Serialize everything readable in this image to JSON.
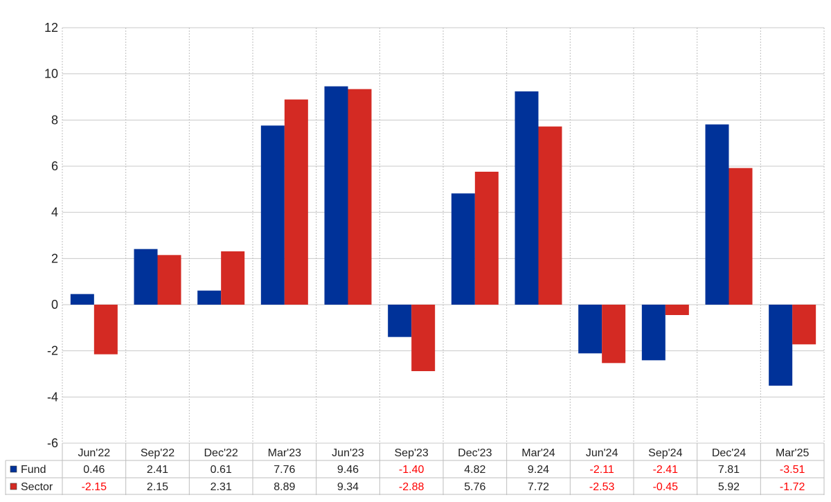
{
  "chart_data": {
    "type": "bar",
    "categories": [
      "Jun'22",
      "Sep'22",
      "Dec'22",
      "Mar'23",
      "Jun'23",
      "Sep'23",
      "Dec'23",
      "Mar'24",
      "Jun'24",
      "Sep'24",
      "Dec'24",
      "Mar'25"
    ],
    "series": [
      {
        "name": "Fund",
        "color": "#003299",
        "values": [
          0.46,
          2.41,
          0.61,
          7.76,
          9.46,
          -1.4,
          4.82,
          9.24,
          -2.11,
          -2.41,
          7.81,
          -3.51
        ],
        "labels": [
          "0.46",
          "2.41",
          "0.61",
          "7.76",
          "9.46",
          "-1.40",
          "4.82",
          "9.24",
          "-2.11",
          "-2.41",
          "7.81",
          "-3.51"
        ]
      },
      {
        "name": "Sector",
        "color": "#d42a23",
        "values": [
          -2.15,
          2.15,
          2.31,
          8.89,
          9.34,
          -2.88,
          5.76,
          7.72,
          -2.53,
          -0.45,
          5.92,
          -1.72
        ],
        "labels": [
          "-2.15",
          "2.15",
          "2.31",
          "8.89",
          "9.34",
          "-2.88",
          "5.76",
          "7.72",
          "-2.53",
          "-0.45",
          "5.92",
          "-1.72"
        ]
      }
    ],
    "y_ticks": [
      "12",
      "10",
      "8",
      "6",
      "4",
      "2",
      "0",
      "-2",
      "-4",
      "-6"
    ],
    "ylim": [
      -6,
      12
    ],
    "grid": {
      "horizontal": "solid",
      "vertical": "dashed"
    },
    "negative_value_color": "#ff0000",
    "positive_value_color": "#222222",
    "legend": "data-table-below"
  }
}
